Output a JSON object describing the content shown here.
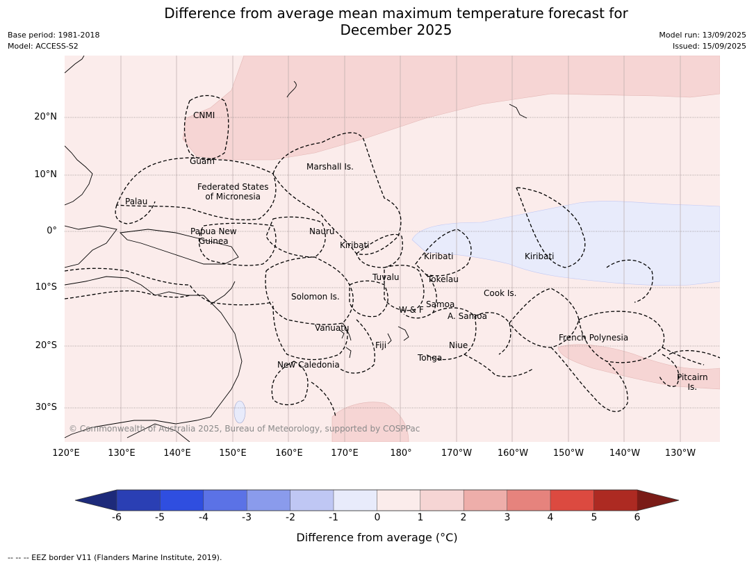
{
  "title_line1": "Difference from average mean maximum temperature forecast for",
  "title_line2": "December 2025",
  "base_period": "Base period: 1981-2018",
  "model": "Model: ACCESS-S2",
  "model_run": "Model run: 13/09/2025",
  "issued": "Issued: 15/09/2025",
  "lat_labels": [
    "20°N",
    "10°N",
    "0°",
    "10°S",
    "20°S",
    "30°S"
  ],
  "lon_labels": [
    "120°E",
    "130°E",
    "140°E",
    "150°E",
    "160°E",
    "170°E",
    "180°",
    "170°W",
    "160°W",
    "150°W",
    "140°W",
    "130°W"
  ],
  "regions": {
    "cnmi": "CNMI",
    "guam": "Guam",
    "marshall": "Marshall Is.",
    "fsm_line1": "Federated States",
    "fsm_line2": "of Micronesia",
    "palau": "Palau",
    "png_line1": "Papua New",
    "png_line2": "Guinea",
    "nauru": "Nauru",
    "kiribati_w": "Kiribati",
    "kiribati_c": "Kiribati",
    "kiribati_e": "Kiribati",
    "tuvalu": "Tuvalu",
    "tokelau": "Tokelau",
    "cook": "Cook Is.",
    "solomon": "Solomon Is.",
    "wf": "W & F",
    "samoa": "Samoa",
    "asamoa": "A. Samoa",
    "vanuatu": "Vanuatu",
    "fiji": "Fiji",
    "niue": "Niue",
    "tonga": "Tonga",
    "fp": "French Polynesia",
    "newcal": "New Caledonia",
    "pitcairn_line1": "Pitcairn",
    "pitcairn_line2": "Is."
  },
  "copyright": "© Commonwealth of Australia 2025, Bureau of Meteorology, supported by COSPPac",
  "colorbar": {
    "ticks": [
      "-6",
      "-5",
      "-4",
      "-3",
      "-2",
      "-1",
      "0",
      "1",
      "2",
      "3",
      "4",
      "5",
      "6"
    ],
    "colors": [
      "#1d2a7a",
      "#2a3fb4",
      "#2f4ee0",
      "#5b72e6",
      "#8a9bec",
      "#bfc7f4",
      "#e8ebfb",
      "#fbeceb",
      "#f6d5d4",
      "#eeaeaa",
      "#e6837d",
      "#dc4a40",
      "#ad2a22",
      "#7a1c17"
    ],
    "label": "Difference from average (°C)"
  },
  "footnote": "--  --  -- EEZ border V11 (Flanders Marine Institute, 2019)."
}
